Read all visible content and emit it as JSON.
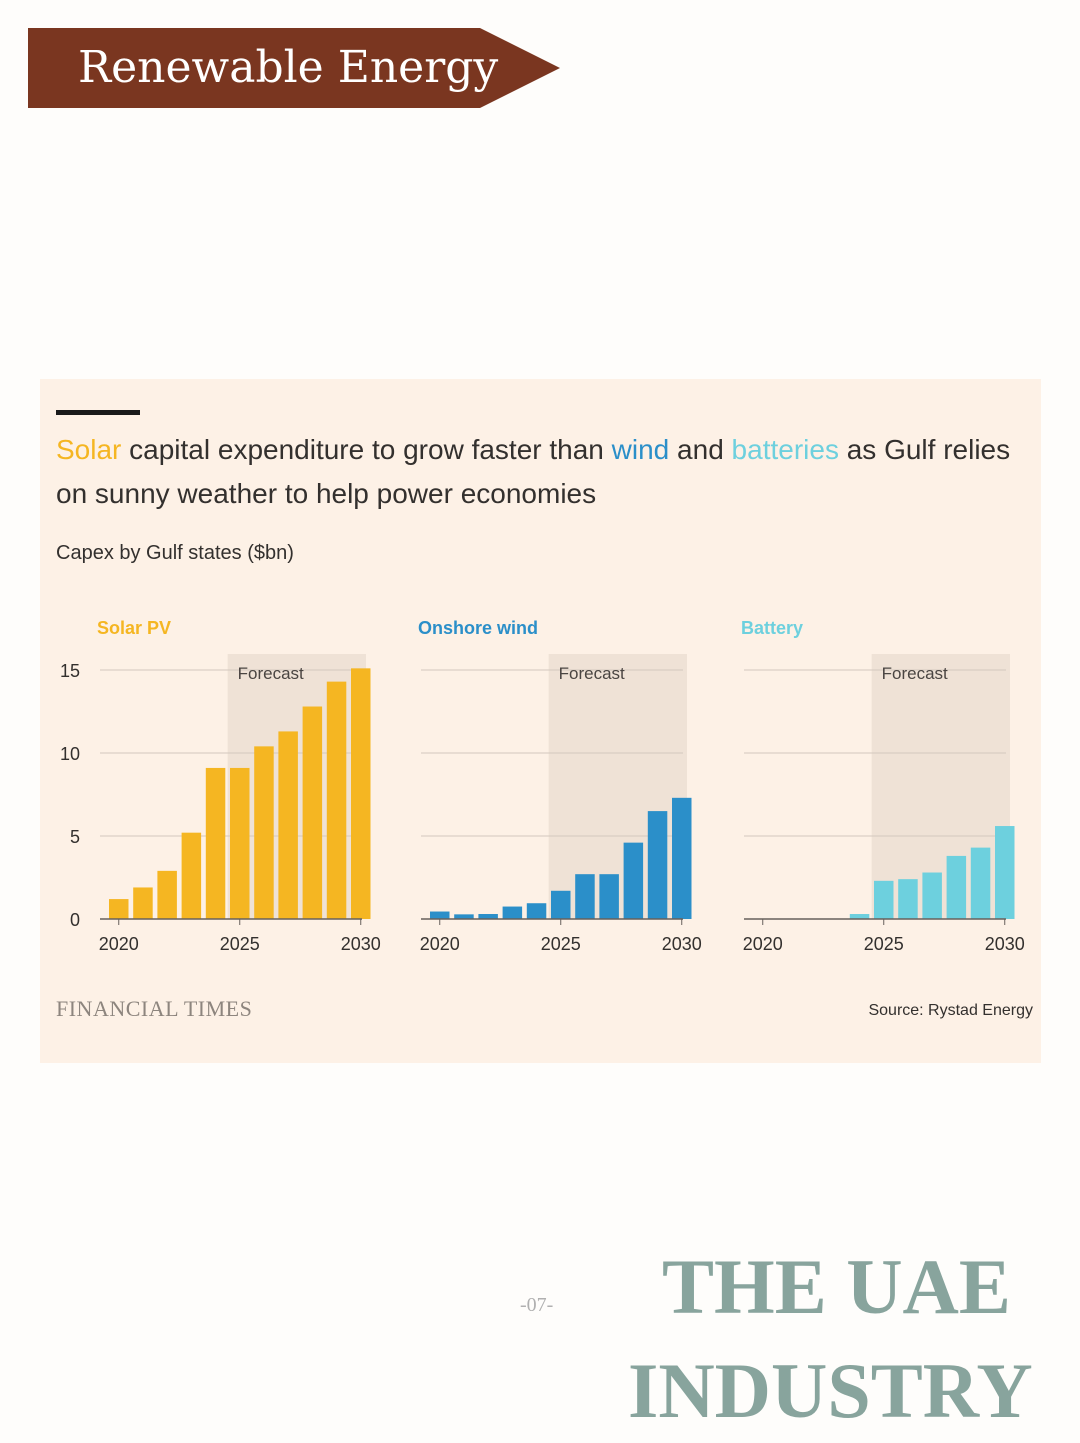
{
  "banner": {
    "title": "Renewable Energy",
    "color": "#7a3620"
  },
  "headline": {
    "solar": "Solar",
    "part1": " capital expenditure to grow faster than ",
    "wind": "wind",
    "part2": " and ",
    "batteries": "batteries",
    "part3": " as Gulf relies on sunny weather to help power economies"
  },
  "subtitle": "Capex by Gulf states ($bn)",
  "footer": {
    "logo": "FINANCIAL TIMES",
    "source": "Source: Rystad Energy"
  },
  "page": {
    "number": "-07-",
    "title_line1": "THE UAE",
    "title_line2": "INDUSTRY"
  },
  "chart_data": [
    {
      "type": "bar",
      "title": "Solar PV",
      "color": "#f5b622",
      "x": [
        2020,
        2021,
        2022,
        2023,
        2024,
        2025,
        2026,
        2027,
        2028,
        2029,
        2030
      ],
      "values": [
        1.2,
        1.9,
        2.9,
        5.2,
        9.1,
        9.1,
        10.4,
        11.3,
        12.8,
        14.3,
        15.1
      ],
      "ylim": [
        0,
        15
      ],
      "yticks": [
        "0",
        "5",
        "10",
        "15"
      ],
      "xticks": [
        "2020",
        "2025",
        "2030"
      ],
      "forecast_start": 2024.5,
      "forecast_label": "Forecast"
    },
    {
      "type": "bar",
      "title": "Onshore wind",
      "color": "#2b8fc9",
      "x": [
        2020,
        2021,
        2022,
        2023,
        2024,
        2025,
        2026,
        2027,
        2028,
        2029,
        2030
      ],
      "values": [
        0.45,
        0.28,
        0.3,
        0.75,
        0.95,
        1.7,
        2.7,
        2.7,
        4.6,
        6.5,
        7.3
      ],
      "ylim": [
        0,
        15
      ],
      "xticks": [
        "2020",
        "2025",
        "2030"
      ],
      "forecast_start": 2024.5,
      "forecast_label": "Forecast"
    },
    {
      "type": "bar",
      "title": "Battery",
      "color": "#6dd0de",
      "x": [
        2020,
        2021,
        2022,
        2023,
        2024,
        2025,
        2026,
        2027,
        2028,
        2029,
        2030
      ],
      "values": [
        0,
        0,
        0,
        0,
        0.3,
        2.3,
        2.4,
        2.8,
        3.8,
        4.3,
        5.6
      ],
      "ylim": [
        0,
        15
      ],
      "xticks": [
        "2020",
        "2025",
        "2030"
      ],
      "forecast_start": 2024.5,
      "forecast_label": "Forecast"
    }
  ]
}
